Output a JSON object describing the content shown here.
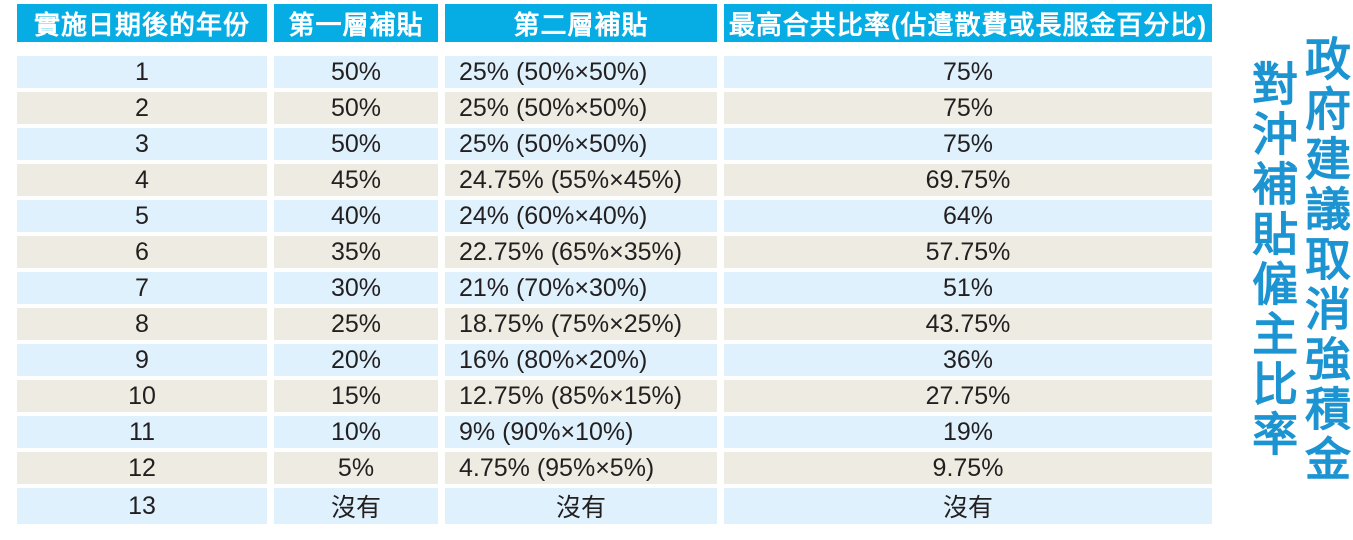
{
  "title": {
    "full": "政府建議取消強積金對沖補貼僱主比率",
    "line1": "政府建議取消強積金",
    "line2": "對沖補貼僱主比率"
  },
  "colors": {
    "header_bg": "#06ACE4",
    "header_text": "#FFFFFF",
    "row_odd_bg": "#DFF1FC",
    "row_even_bg": "#EEEBE2",
    "body_text": "#231F20",
    "title_text": "#1D94D2"
  },
  "chart_data": {
    "type": "table",
    "title": "政府建議取消強積金對沖補貼僱主比率",
    "columns": [
      "實施日期後的年份",
      "第一層補貼",
      "第二層補貼",
      "最高合共比率(佔遣散費或長服金百分比)"
    ],
    "none_label": "沒有",
    "rows": [
      [
        "1",
        "50%",
        "25% (50%×50%)",
        "75%"
      ],
      [
        "2",
        "50%",
        "25% (50%×50%)",
        "75%"
      ],
      [
        "3",
        "50%",
        "25% (50%×50%)",
        "75%"
      ],
      [
        "4",
        "45%",
        "24.75% (55%×45%)",
        "69.75%"
      ],
      [
        "5",
        "40%",
        "24% (60%×40%)",
        "64%"
      ],
      [
        "6",
        "35%",
        "22.75% (65%×35%)",
        "57.75%"
      ],
      [
        "7",
        "30%",
        "21% (70%×30%)",
        "51%"
      ],
      [
        "8",
        "25%",
        "18.75% (75%×25%)",
        "43.75%"
      ],
      [
        "9",
        "20%",
        "16% (80%×20%)",
        "36%"
      ],
      [
        "10",
        "15%",
        "12.75% (85%×15%)",
        "27.75%"
      ],
      [
        "11",
        "10%",
        "9% (90%×10%)",
        "19%"
      ],
      [
        "12",
        "5%",
        "4.75% (95%×5%)",
        "9.75%"
      ],
      [
        "13",
        "沒有",
        "沒有",
        "沒有"
      ]
    ]
  }
}
